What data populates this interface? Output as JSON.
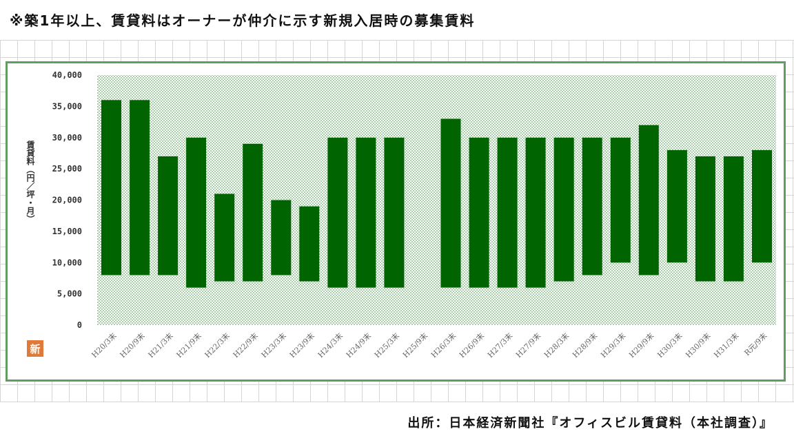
{
  "note": "※築1年以上、賃貸料はオーナーが仲介に示す新規入居時の募集賃料",
  "source": "出所：日本経済新聞社『オフィスビル賃貸料（本社調査）』",
  "badge_label": "新",
  "colors": {
    "bar": "#006400",
    "plot_dots": "#a7cfa7",
    "frame": "#5f9e5f",
    "badge": "#e07a3a"
  },
  "chart_data": {
    "type": "bar",
    "subtype": "floating-range",
    "title": "",
    "xlabel": "",
    "ylabel": "賃貸料（円／坪・月）",
    "ylim": [
      0,
      40000
    ],
    "yticks": [
      0,
      5000,
      10000,
      15000,
      20000,
      25000,
      30000,
      35000,
      40000
    ],
    "ytick_labels": [
      "0",
      "5,000",
      "10,000",
      "15,000",
      "20,000",
      "25,000",
      "30,000",
      "35,000",
      "40,000"
    ],
    "grid": false,
    "legend": "none",
    "categories": [
      "H20/3末",
      "H20/9末",
      "H21/3末",
      "H21/9末",
      "H22/3末",
      "H22/9末",
      "H23/3末",
      "H23/9末",
      "H24/3末",
      "H24/9末",
      "H25/3末",
      "H25/9末",
      "H26/3末",
      "H26/9末",
      "H27/3末",
      "H27/9末",
      "H28/3末",
      "H28/9末",
      "H29/3末",
      "H29/9末",
      "H30/3末",
      "H30/9末",
      "H31/3末",
      "R元/9末"
    ],
    "series": [
      {
        "low": [
          8000,
          8000,
          8000,
          6000,
          7000,
          7000,
          8000,
          7000,
          6000,
          6000,
          6000,
          null,
          6000,
          6000,
          6000,
          6000,
          7000,
          8000,
          10000,
          8000,
          10000,
          7000,
          7000,
          10000
        ],
        "high": [
          36000,
          36000,
          27000,
          30000,
          21000,
          29000,
          20000,
          19000,
          30000,
          30000,
          30000,
          null,
          33000,
          30000,
          30000,
          30000,
          30000,
          30000,
          30000,
          32000,
          28000,
          27000,
          27000,
          28000
        ]
      }
    ]
  }
}
